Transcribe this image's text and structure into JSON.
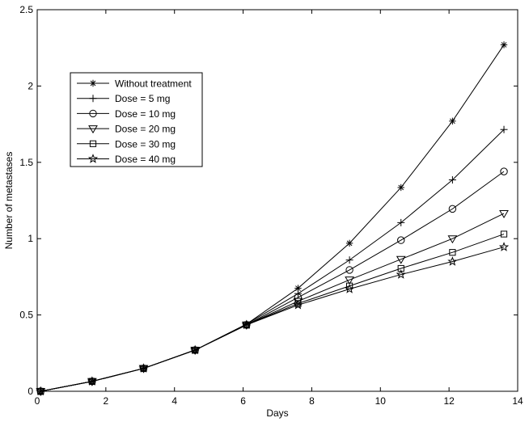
{
  "chart_data": {
    "type": "line",
    "xlabel": "Days",
    "ylabel": "Number of metastases",
    "xlim": [
      0,
      14
    ],
    "ylim": [
      0,
      2.5
    ],
    "xticks": [
      0,
      2,
      4,
      6,
      8,
      10,
      12,
      14
    ],
    "yticks": [
      0,
      0.5,
      1,
      1.5,
      2,
      2.5
    ],
    "xtick_labels": [
      "0",
      "2",
      "4",
      "6",
      "8",
      "10",
      "12",
      "14"
    ],
    "ytick_labels": [
      "0",
      "0.5",
      "1",
      "1.5",
      "2",
      "2.5"
    ],
    "grid": false,
    "legend_position": "upper-left",
    "line_color": "#000000",
    "x": [
      0.1,
      1.6,
      3.1,
      4.6,
      6.1,
      7.6,
      9.1,
      10.6,
      12.1,
      13.6
    ],
    "series": [
      {
        "name": "Without treatment",
        "marker": "asterisk",
        "values": [
          0.0,
          0.065,
          0.15,
          0.27,
          0.44,
          0.675,
          0.97,
          1.335,
          1.77,
          2.27
        ]
      },
      {
        "name": "Dose = 5 mg",
        "marker": "plus",
        "values": [
          0.0,
          0.065,
          0.15,
          0.27,
          0.44,
          0.64,
          0.86,
          1.105,
          1.385,
          1.715
        ]
      },
      {
        "name": "Dose = 10 mg",
        "marker": "circle",
        "values": [
          0.0,
          0.065,
          0.15,
          0.27,
          0.435,
          0.615,
          0.795,
          0.99,
          1.195,
          1.44
        ]
      },
      {
        "name": "Dose = 20 mg",
        "marker": "triangle-down",
        "values": [
          0.0,
          0.065,
          0.15,
          0.27,
          0.435,
          0.59,
          0.73,
          0.865,
          1.0,
          1.165
        ]
      },
      {
        "name": "Dose = 30 mg",
        "marker": "square",
        "values": [
          0.0,
          0.065,
          0.15,
          0.27,
          0.435,
          0.575,
          0.69,
          0.805,
          0.91,
          1.03
        ]
      },
      {
        "name": "Dose = 40 mg",
        "marker": "star",
        "values": [
          0.0,
          0.065,
          0.15,
          0.27,
          0.435,
          0.565,
          0.67,
          0.765,
          0.85,
          0.945
        ]
      }
    ]
  }
}
